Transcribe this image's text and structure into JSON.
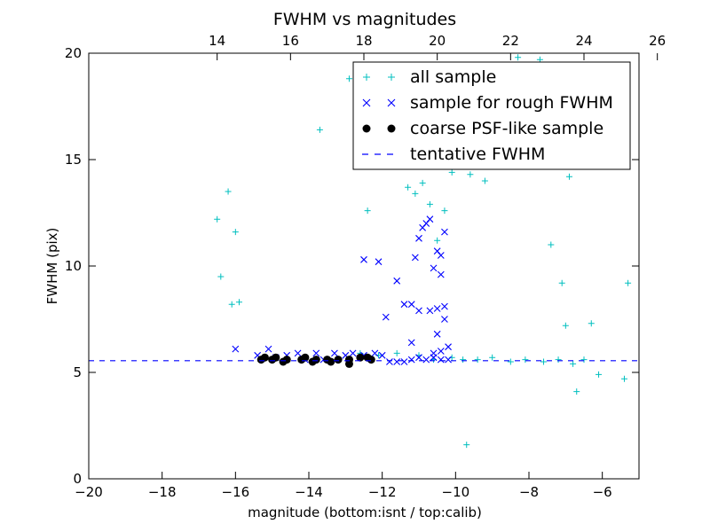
{
  "chart_data": {
    "type": "scatter",
    "title": "FWHM vs magnitudes",
    "xlabel": "magnitude (bottom:isnt / top:calib)",
    "ylabel": "FWHM (pix)",
    "xlim": [
      -20,
      -5
    ],
    "ylim": [
      0,
      20
    ],
    "x_ticks": [
      -20,
      -18,
      -16,
      -14,
      -12,
      -10,
      -8,
      -6
    ],
    "x_tick_labels": [
      "−20",
      "−18",
      "−16",
      "−14",
      "−12",
      "−10",
      "−8",
      "−6"
    ],
    "y_ticks": [
      0,
      5,
      10,
      15,
      20
    ],
    "y_tick_labels": [
      "0",
      "5",
      "10",
      "15",
      "20"
    ],
    "top_axis": {
      "offset": 30.5,
      "ticks": [
        14,
        16,
        18,
        20,
        22,
        24,
        26
      ],
      "tick_labels": [
        "14",
        "16",
        "18",
        "20",
        "22",
        "24",
        "26"
      ]
    },
    "grid": false,
    "legend_position": "top-right",
    "colors": {
      "all_sample": "#00bfbf",
      "rough_sample": "#0000ff",
      "psf_sample": "#000000",
      "tentative": "#0000ff"
    },
    "series": [
      {
        "name": "all sample",
        "marker": "plus",
        "points": [
          [
            -16.5,
            12.2
          ],
          [
            -16.4,
            9.5
          ],
          [
            -16.2,
            13.5
          ],
          [
            -16.1,
            8.2
          ],
          [
            -16.0,
            11.6
          ],
          [
            -15.9,
            8.3
          ],
          [
            -13.7,
            16.4
          ],
          [
            -12.4,
            12.6
          ],
          [
            -11.3,
            13.7
          ],
          [
            -11.1,
            13.4
          ],
          [
            -10.9,
            13.9
          ],
          [
            -10.7,
            12.9
          ],
          [
            -10.5,
            11.2
          ],
          [
            -10.3,
            12.6
          ],
          [
            -10.1,
            14.4
          ],
          [
            -9.6,
            14.3
          ],
          [
            -9.2,
            14.0
          ],
          [
            -8.8,
            15.2
          ],
          [
            -8.3,
            16.4
          ],
          [
            -8.6,
            18.2
          ],
          [
            -8.1,
            18.6
          ],
          [
            -7.7,
            19.7
          ],
          [
            -7.6,
            18.6
          ],
          [
            -8.3,
            19.8
          ],
          [
            -7.8,
            17.6
          ],
          [
            -8.6,
            16.6
          ],
          [
            -6.9,
            14.2
          ],
          [
            -7.1,
            15.1
          ],
          [
            -12.9,
            18.8
          ],
          [
            -9.7,
            1.6
          ],
          [
            -5.3,
            9.2
          ],
          [
            -5.4,
            4.7
          ],
          [
            -6.3,
            7.3
          ],
          [
            -6.1,
            4.9
          ],
          [
            -6.5,
            5.6
          ],
          [
            -6.7,
            4.1
          ],
          [
            -7.1,
            9.2
          ],
          [
            -7.0,
            7.2
          ],
          [
            -7.4,
            11.0
          ],
          [
            -12.6,
            5.9
          ],
          [
            -12.1,
            5.8
          ],
          [
            -11.6,
            5.9
          ],
          [
            -11.0,
            5.8
          ],
          [
            -10.6,
            5.6
          ],
          [
            -10.1,
            5.7
          ],
          [
            -9.8,
            5.6
          ],
          [
            -9.4,
            5.6
          ],
          [
            -9.0,
            5.7
          ],
          [
            -8.5,
            5.5
          ],
          [
            -8.1,
            5.6
          ],
          [
            -7.6,
            5.5
          ],
          [
            -7.2,
            5.6
          ],
          [
            -6.8,
            5.4
          ]
        ]
      },
      {
        "name": "sample for rough FWHM",
        "marker": "x",
        "points": [
          [
            -16.0,
            6.1
          ],
          [
            -15.4,
            5.8
          ],
          [
            -15.1,
            6.1
          ],
          [
            -14.9,
            5.7
          ],
          [
            -14.6,
            5.8
          ],
          [
            -14.3,
            5.9
          ],
          [
            -14.1,
            5.6
          ],
          [
            -13.8,
            5.9
          ],
          [
            -13.6,
            5.6
          ],
          [
            -13.3,
            5.9
          ],
          [
            -13.0,
            5.8
          ],
          [
            -12.8,
            5.9
          ],
          [
            -12.5,
            5.8
          ],
          [
            -12.2,
            5.9
          ],
          [
            -12.0,
            5.8
          ],
          [
            -11.8,
            5.5
          ],
          [
            -11.6,
            5.5
          ],
          [
            -11.4,
            5.5
          ],
          [
            -11.2,
            5.6
          ],
          [
            -11.0,
            5.7
          ],
          [
            -10.8,
            5.6
          ],
          [
            -10.6,
            5.7
          ],
          [
            -10.4,
            5.6
          ],
          [
            -10.2,
            5.6
          ],
          [
            -12.5,
            10.3
          ],
          [
            -12.1,
            10.2
          ],
          [
            -11.6,
            9.3
          ],
          [
            -11.4,
            8.2
          ],
          [
            -11.2,
            8.2
          ],
          [
            -11.0,
            7.9
          ],
          [
            -11.9,
            7.6
          ],
          [
            -11.1,
            10.4
          ],
          [
            -11.0,
            11.3
          ],
          [
            -10.9,
            11.8
          ],
          [
            -10.8,
            12.0
          ],
          [
            -10.7,
            12.2
          ],
          [
            -10.5,
            10.7
          ],
          [
            -10.4,
            10.5
          ],
          [
            -10.3,
            11.6
          ],
          [
            -10.4,
            9.6
          ],
          [
            -10.6,
            9.9
          ],
          [
            -10.5,
            8.0
          ],
          [
            -10.7,
            7.9
          ],
          [
            -10.3,
            7.5
          ],
          [
            -10.5,
            6.8
          ],
          [
            -11.2,
            6.4
          ],
          [
            -10.2,
            6.2
          ],
          [
            -10.6,
            5.9
          ],
          [
            -10.4,
            6.0
          ],
          [
            -10.3,
            8.1
          ]
        ]
      },
      {
        "name": "coarse PSF-like sample",
        "marker": "dot",
        "points": [
          [
            -15.3,
            5.6
          ],
          [
            -15.2,
            5.7
          ],
          [
            -15.0,
            5.6
          ],
          [
            -14.9,
            5.7
          ],
          [
            -14.7,
            5.5
          ],
          [
            -14.6,
            5.6
          ],
          [
            -14.2,
            5.6
          ],
          [
            -14.1,
            5.7
          ],
          [
            -13.9,
            5.5
          ],
          [
            -13.8,
            5.6
          ],
          [
            -13.5,
            5.6
          ],
          [
            -13.4,
            5.5
          ],
          [
            -13.2,
            5.6
          ],
          [
            -12.9,
            5.4
          ],
          [
            -12.9,
            5.6
          ],
          [
            -12.6,
            5.7
          ],
          [
            -12.4,
            5.7
          ],
          [
            -12.3,
            5.6
          ]
        ]
      },
      {
        "name": "tentative FWHM",
        "marker": "dashed-line",
        "y": 5.55
      }
    ]
  }
}
